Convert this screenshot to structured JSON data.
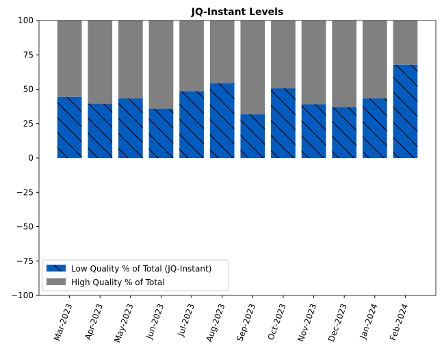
{
  "chart_data": {
    "type": "bar",
    "stacked": true,
    "title": "JQ-Instant Levels",
    "xlabel": "",
    "ylabel": "",
    "ylim": [
      -100,
      100
    ],
    "yticks": [
      100,
      75,
      50,
      25,
      0,
      -25,
      -50,
      -75,
      -100
    ],
    "categories": [
      "Mar-2023",
      "Apr-2023",
      "May-2023",
      "Jun-2023",
      "Jul-2023",
      "Aug-2023",
      "Sep-2023",
      "Oct-2023",
      "Nov-2023",
      "Dec-2023",
      "Jan-2024",
      "Feb-2024"
    ],
    "series": [
      {
        "name": "Low Quality % of Total (JQ-Instant)",
        "color": "#005cbf",
        "hatch": "\\",
        "values": [
          44.4,
          39.5,
          43.3,
          35.8,
          48.6,
          54.4,
          31.8,
          50.7,
          39.2,
          37.0,
          43.3,
          67.8
        ]
      },
      {
        "name": "High Quality % of Total",
        "color": "#808080",
        "values": [
          55.6,
          60.5,
          56.7,
          64.2,
          51.4,
          45.6,
          68.2,
          49.3,
          60.8,
          63.0,
          56.7,
          32.2
        ]
      }
    ],
    "legend_position": "lower-left"
  }
}
